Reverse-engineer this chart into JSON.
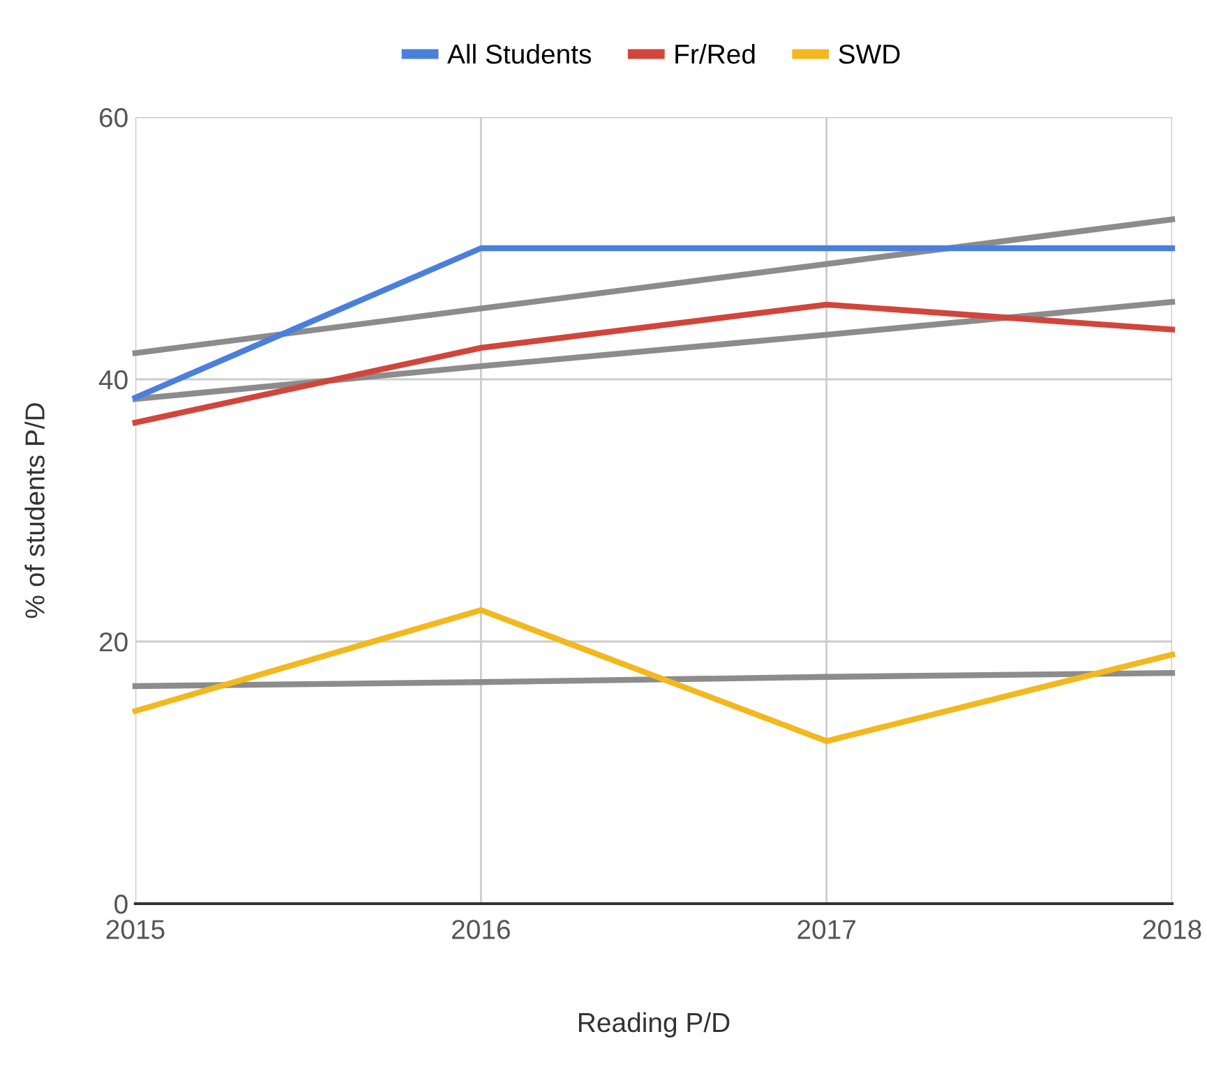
{
  "chart_data": {
    "type": "line",
    "xlabel": "Reading P/D",
    "ylabel": "% of students P/D",
    "x": [
      2015,
      2016,
      2017,
      2018
    ],
    "series": [
      {
        "name": "All Students",
        "color": "#4a7fde",
        "values": [
          38.6,
          50,
          50,
          50
        ]
      },
      {
        "name": "Fr/Red",
        "color": "#d2453a",
        "values": [
          36.7,
          42.4,
          45.7,
          43.8
        ]
      },
      {
        "name": "SWD",
        "color": "#f2b81e",
        "values": [
          14.7,
          22.4,
          12.4,
          19.0
        ]
      },
      {
        "type": "line",
        "color": "#8c8c8c",
        "values": [
          42.0,
          45.4,
          48.8,
          52.2
        ]
      },
      {
        "type": "line",
        "color": "#8c8c8c",
        "values": [
          38.5,
          41.0,
          43.4,
          45.9
        ]
      },
      {
        "type": "line",
        "color": "#8c8c8c",
        "values": [
          16.6,
          16.9,
          17.3,
          17.6
        ]
      }
    ],
    "xlim": [
      2015,
      2018
    ],
    "xticks": [
      2015,
      2016,
      2017,
      2018
    ],
    "ylim": [
      0,
      60
    ],
    "yticks": [
      0,
      20,
      40,
      60
    ],
    "grid": true,
    "legend": "top",
    "marker": "none",
    "line_style": "solid"
  }
}
